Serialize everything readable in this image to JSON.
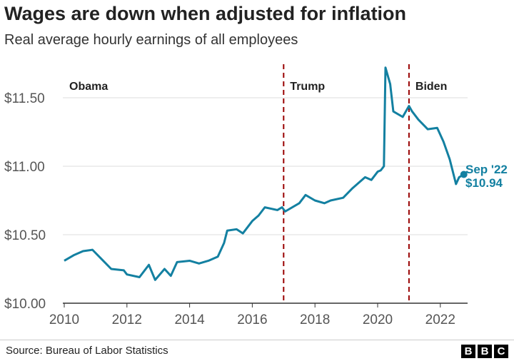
{
  "chart_data": {
    "type": "line",
    "title": "Wages are down when adjusted for inflation",
    "subtitle": "Real average hourly earnings of all employees",
    "xlim": [
      2010,
      2022.75
    ],
    "ylim": [
      10.0,
      11.75
    ],
    "xticks": [
      2010,
      2012,
      2014,
      2016,
      2018,
      2020,
      2022
    ],
    "xtick_labels": [
      "2010",
      "2012",
      "2014",
      "2016",
      "2018",
      "2020",
      "2022"
    ],
    "yticks": [
      10.0,
      10.5,
      11.0,
      11.5
    ],
    "ytick_labels": [
      "$10.00",
      "$10.50",
      "$11.00",
      "$11.50"
    ],
    "grid": "horizontal",
    "line_color": "#1380a1",
    "marker_color": "#990000",
    "series": [
      {
        "x": [
          2010.0,
          2010.3,
          2010.6,
          2010.9,
          2011.2,
          2011.5,
          2011.9,
          2012.0,
          2012.4,
          2012.7,
          2012.9,
          2013.2,
          2013.4,
          2013.6,
          2014.0,
          2014.3,
          2014.6,
          2014.9,
          2015.1,
          2015.2,
          2015.5,
          2015.7,
          2016.0,
          2016.2,
          2016.4,
          2016.8,
          2016.95,
          2017.05,
          2017.5,
          2017.7,
          2018.0,
          2018.3,
          2018.5,
          2018.9,
          2019.2,
          2019.6,
          2019.8,
          2020.0,
          2020.1,
          2020.2,
          2020.25,
          2020.4,
          2020.5,
          2020.8,
          2021.0,
          2021.1,
          2021.3,
          2021.6,
          2021.9,
          2022.1,
          2022.3,
          2022.5,
          2022.6,
          2022.75
        ],
        "y": [
          10.31,
          10.35,
          10.38,
          10.39,
          10.32,
          10.25,
          10.24,
          10.21,
          10.19,
          10.28,
          10.17,
          10.25,
          10.2,
          10.3,
          10.31,
          10.29,
          10.31,
          10.34,
          10.44,
          10.53,
          10.54,
          10.51,
          10.6,
          10.64,
          10.7,
          10.68,
          10.7,
          10.67,
          10.73,
          10.79,
          10.75,
          10.73,
          10.75,
          10.77,
          10.84,
          10.92,
          10.9,
          10.96,
          10.97,
          11.0,
          11.72,
          11.6,
          11.4,
          11.36,
          11.44,
          11.4,
          11.34,
          11.27,
          11.28,
          11.18,
          11.05,
          10.87,
          10.92,
          10.94
        ]
      }
    ],
    "annotations": [
      {
        "label": "Obama",
        "x": 2010
      },
      {
        "label": "Trump",
        "x": 2017.0,
        "divider": true
      },
      {
        "label": "Biden",
        "x": 2021.0,
        "divider": true
      }
    ],
    "end_label": {
      "date": "Sep '22",
      "value": "$10.94"
    }
  },
  "footer": {
    "source": "Source: Bureau of Labor Statistics",
    "logo": [
      "B",
      "B",
      "C"
    ]
  }
}
